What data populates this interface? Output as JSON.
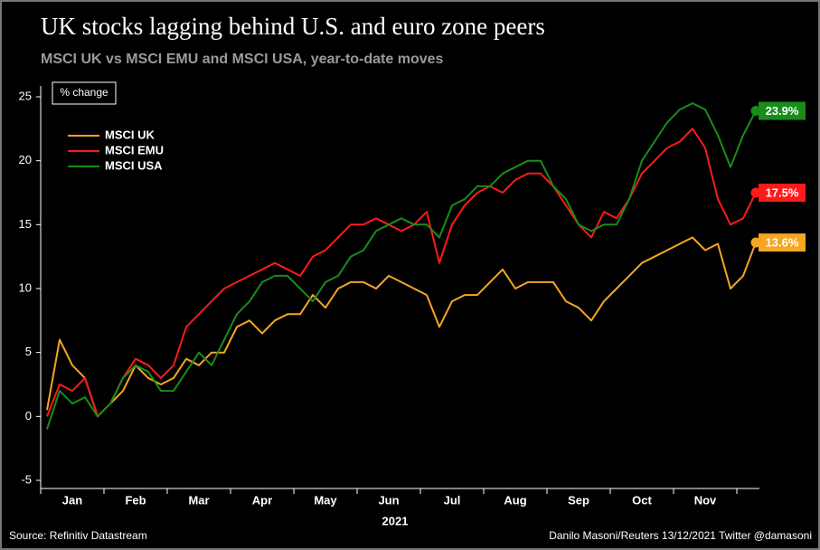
{
  "chart_data": {
    "type": "line",
    "title": "UK stocks lagging behind U.S. and euro zone peers",
    "subtitle": "MSCI UK vs MSCI EMU and MSCI USA, year-to-date moves",
    "unit_label": "% change",
    "x_label": "2021",
    "source": "Source: Refinitiv Datastream",
    "credit": "Danilo Masoni/Reuters 13/12/2021 Twitter @damasoni",
    "categories": [
      null,
      null,
      "Jan",
      null,
      null,
      null,
      null,
      "Feb",
      null,
      null,
      null,
      null,
      "Mar",
      null,
      null,
      null,
      null,
      "Apr",
      null,
      null,
      null,
      null,
      "May",
      null,
      null,
      null,
      null,
      "Jun",
      null,
      null,
      null,
      null,
      "Jul",
      null,
      null,
      null,
      null,
      "Aug",
      null,
      null,
      null,
      null,
      "Sep",
      null,
      null,
      null,
      null,
      "Oct",
      null,
      null,
      null,
      null,
      "Nov",
      null,
      null,
      null,
      null
    ],
    "ylim": [
      -5,
      25
    ],
    "yticks": [
      -5,
      0,
      5,
      10,
      15,
      20,
      25
    ],
    "legend": "top-left",
    "series": [
      {
        "name": "MSCI UK",
        "color": "#f5a623",
        "end_label": "13.6%",
        "values": [
          0.5,
          6,
          4,
          3,
          0,
          1,
          2,
          4,
          3,
          2.5,
          3,
          4.5,
          4,
          5,
          5,
          7,
          7.5,
          6.5,
          7.5,
          8,
          8,
          9.5,
          8.5,
          10,
          10.5,
          10.5,
          10,
          11,
          10.5,
          10,
          9.5,
          7,
          9,
          9.5,
          9.5,
          10.5,
          11.5,
          10,
          10.5,
          10.5,
          10.5,
          9,
          8.5,
          7.5,
          9,
          10,
          11,
          12,
          12.5,
          13,
          13.5,
          14,
          13,
          13.5,
          10,
          11,
          13.6
        ]
      },
      {
        "name": "MSCI EMU",
        "color": "#ff1a1a",
        "end_label": "17.5%",
        "values": [
          0,
          2.5,
          2,
          3,
          0,
          1,
          3,
          4.5,
          4,
          3,
          4,
          7,
          8,
          9,
          10,
          10.5,
          11,
          11.5,
          12,
          11.5,
          11,
          12.5,
          13,
          14,
          15,
          15,
          15.5,
          15,
          14.5,
          15,
          16,
          12,
          15,
          16.5,
          17.5,
          18,
          17.5,
          18.5,
          19,
          19,
          18,
          16.5,
          15,
          14,
          16,
          15.5,
          17,
          19,
          20,
          21,
          21.5,
          22.5,
          21,
          17,
          15,
          15.5,
          17.5
        ]
      },
      {
        "name": "MSCI USA",
        "color": "#1a8c1a",
        "end_label": "23.9%",
        "values": [
          -1,
          2,
          1,
          1.5,
          0,
          1,
          3,
          4,
          3.5,
          2,
          2,
          3.5,
          5,
          4,
          6,
          8,
          9,
          10.5,
          11,
          11,
          10,
          9,
          10.5,
          11,
          12.5,
          13,
          14.5,
          15,
          15.5,
          15,
          15,
          14,
          16.5,
          17,
          18,
          18,
          19,
          19.5,
          20,
          20,
          18,
          17,
          15,
          14.5,
          15,
          15,
          17,
          20,
          21.5,
          23,
          24,
          24.5,
          24,
          22,
          19.5,
          22,
          23.9
        ]
      }
    ]
  }
}
